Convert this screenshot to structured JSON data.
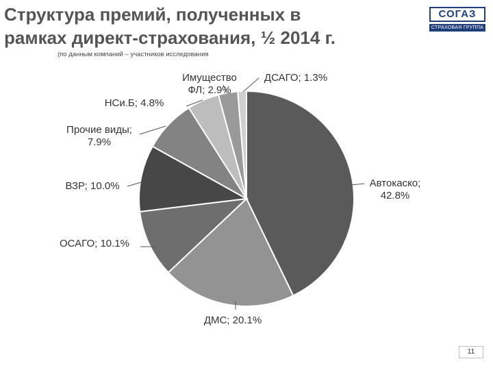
{
  "slide": {
    "title_line1": "Структура премий, полученных в",
    "title_line2": "рамках директ-страхования, ½ 2014 г.",
    "subtitle": "(по данным компаний – участников исследования",
    "page_number": "11"
  },
  "logo": {
    "word": "СОГАЗ",
    "tagline": "СТРАХОВАЯ ГРУППА"
  },
  "chart_data": {
    "type": "pie",
    "title": "Структура премий, полученных в рамках директ-страхования, ½ 2014 г.",
    "unit": "%",
    "slices": [
      {
        "name": "Автокаско",
        "value": 42.8,
        "label_line1": "Автокаско;",
        "label_line2": "42.8%",
        "color": "#5a5a5a"
      },
      {
        "name": "ДМС",
        "value": 20.1,
        "label_line1": "ДМС; 20.1%",
        "label_line2": "",
        "color": "#939393"
      },
      {
        "name": "ОСАГО",
        "value": 10.1,
        "label_line1": "ОСАГО; 10.1%",
        "label_line2": "",
        "color": "#6e6e6e"
      },
      {
        "name": "ВЗР",
        "value": 10.0,
        "label_line1": "ВЗР; 10.0%",
        "label_line2": "",
        "color": "#474747"
      },
      {
        "name": "Прочие виды",
        "value": 7.9,
        "label_line1": "Прочие виды;",
        "label_line2": "7.9%",
        "color": "#838383"
      },
      {
        "name": "НСиБ",
        "value": 4.8,
        "label_line1": "НСи.Б; 4.8%",
        "label_line2": "",
        "color": "#bdbdbd"
      },
      {
        "name": "Имущество ФЛ",
        "value": 2.9,
        "label_line1": "Имущество",
        "label_line2": "ФЛ; 2.9%",
        "color": "#9a9a9a"
      },
      {
        "name": "ДСАГО",
        "value": 1.3,
        "label_line1": "ДСАГО; 1.3%",
        "label_line2": "",
        "color": "#cfcfcf"
      }
    ]
  }
}
